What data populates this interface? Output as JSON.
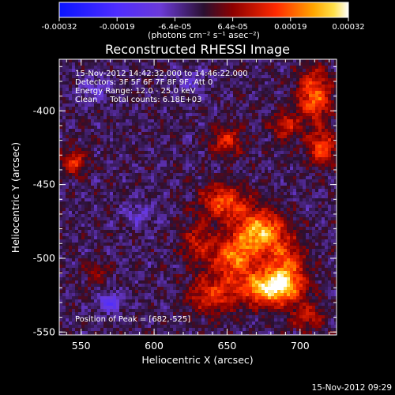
{
  "chart_data": {
    "type": "heatmap",
    "title": "Reconstructed RHESSI Image",
    "xlabel": "Heliocentric X (arcsec)",
    "ylabel": "Heliocentric Y (arcsec)",
    "xlim": [
      535,
      725
    ],
    "ylim": [
      -552,
      -365
    ],
    "x_ticks": [
      550,
      600,
      650,
      700
    ],
    "y_ticks": [
      -400,
      -450,
      -500,
      -550
    ],
    "colorbar": {
      "ticks": [
        "-0.00032",
        "-0.00019",
        "-6.4e-05",
        "6.4e-05",
        "0.00019",
        "0.00032"
      ],
      "unit_label": "(photons cm⁻² s⁻¹ asec⁻²)",
      "range": [
        -0.00032,
        0.00032
      ]
    },
    "info_lines": [
      "15-Nov-2012 14:42:32.000 to 14:46:22.000",
      "Detectors: 3F 5F 6F 7F 8F 9F, Att 0",
      "Energy Range: 12.0 - 25.0 keV",
      "Clean     Total counts: 6.18E+03"
    ],
    "peak_label": "Position of Peak = [682,-525]",
    "peak": [
      682,
      -525
    ],
    "hotspots": [
      {
        "x": 672,
        "y": -482,
        "value": 0.00028,
        "sx": 12,
        "sy": 10
      },
      {
        "x": 680,
        "y": -520,
        "value": 0.00032,
        "sx": 14,
        "sy": 8
      },
      {
        "x": 655,
        "y": -500,
        "value": 0.00022,
        "sx": 10,
        "sy": 9
      },
      {
        "x": 648,
        "y": -462,
        "value": 0.0002,
        "sx": 11,
        "sy": 8
      },
      {
        "x": 690,
        "y": -505,
        "value": 0.00018,
        "sx": 9,
        "sy": 12
      },
      {
        "x": 640,
        "y": -525,
        "value": 0.00016,
        "sx": 12,
        "sy": 9
      },
      {
        "x": 630,
        "y": -490,
        "value": 0.00012,
        "sx": 8,
        "sy": 10
      },
      {
        "x": 710,
        "y": -390,
        "value": 0.00022,
        "sx": 8,
        "sy": 12
      },
      {
        "x": 715,
        "y": -425,
        "value": 0.00018,
        "sx": 7,
        "sy": 8
      },
      {
        "x": 650,
        "y": -420,
        "value": 0.00014,
        "sx": 8,
        "sy": 7
      },
      {
        "x": 690,
        "y": -410,
        "value": 0.00014,
        "sx": 7,
        "sy": 6
      },
      {
        "x": 545,
        "y": -435,
        "value": 0.00016,
        "sx": 6,
        "sy": 6
      },
      {
        "x": 560,
        "y": -510,
        "value": 8e-05,
        "sx": 6,
        "sy": 6
      },
      {
        "x": 705,
        "y": -540,
        "value": 0.00012,
        "sx": 8,
        "sy": 6
      }
    ],
    "coldspots": [
      {
        "x": 570,
        "y": -530,
        "value": -0.00012,
        "sx": 6,
        "sy": 5
      },
      {
        "x": 590,
        "y": -470,
        "value": -8e-05,
        "sx": 7,
        "sy": 6
      },
      {
        "x": 560,
        "y": -385,
        "value": -7e-05,
        "sx": 8,
        "sy": 6
      },
      {
        "x": 625,
        "y": -380,
        "value": -6e-05,
        "sx": 8,
        "sy": 6
      }
    ],
    "grid": false
  },
  "footer": {
    "timestamp": "15-Nov-2012 09:29"
  }
}
